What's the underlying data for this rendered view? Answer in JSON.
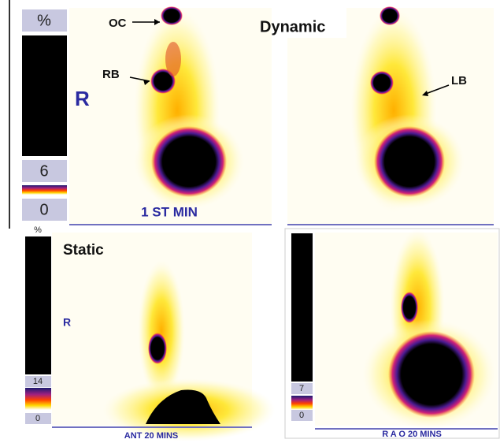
{
  "dynamic": {
    "scale": {
      "header": "%",
      "max": 6,
      "min": 0
    },
    "title": "Dynamic",
    "labels": {
      "oc": "OC",
      "rb": "RB",
      "lb": "LB",
      "side": "R"
    },
    "caption": "1 ST MIN"
  },
  "static_ant": {
    "scale": {
      "header": "%",
      "max": 14,
      "min": 0
    },
    "title": "Static",
    "side": "R",
    "caption": "ANT 20 MINS"
  },
  "static_rao": {
    "scale": {
      "max": 7,
      "min": 0
    },
    "caption": "R A O 20 MINS"
  }
}
